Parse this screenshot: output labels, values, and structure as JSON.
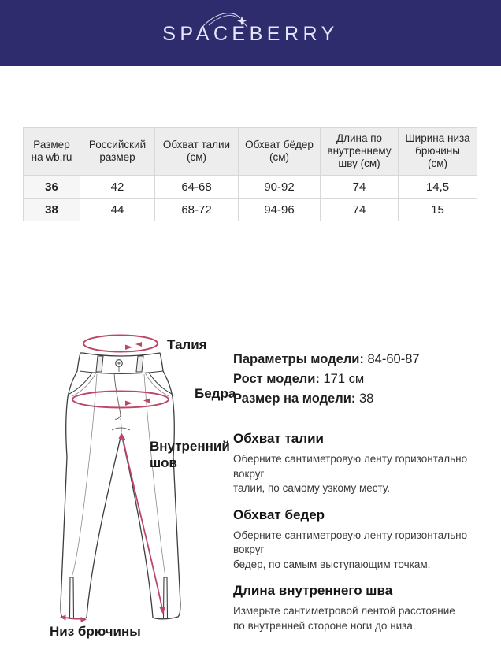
{
  "brand": {
    "logo_text": "SPACEBERRY"
  },
  "colors": {
    "header_bg": "#2e2c6d",
    "accent_pink": "#bc4767",
    "table_header_bg": "#ededed",
    "table_first_col_bg": "#f6f6f6"
  },
  "size_table": {
    "columns": [
      "Размер\nна wb.ru",
      "Российский\nразмер",
      "Обхват талии\n(см)",
      "Обхват бёдер\n(см)",
      "Длина по\nвнутреннему\nшву (см)",
      "Ширина низа\nбрючины\n(см)"
    ],
    "rows": [
      [
        "36",
        "42",
        "64-68",
        "90-92",
        "74",
        "14,5"
      ],
      [
        "38",
        "44",
        "68-72",
        "94-96",
        "74",
        "15"
      ]
    ]
  },
  "diagram": {
    "labels": {
      "waist": "Талия",
      "hips": "Бедра",
      "inseam": "Внутренний шов",
      "hem": "Низ брючины"
    },
    "icons": [
      "waist-measure-ellipse",
      "hips-measure-ellipse",
      "inseam-arrow",
      "hem-width-arrow"
    ]
  },
  "model_info": [
    {
      "label": "Параметры модели:",
      "value": "84-60-87"
    },
    {
      "label": "Рост модели:",
      "value": "171 см"
    },
    {
      "label": "Размер на модели:",
      "value": "38"
    }
  ],
  "instructions": [
    {
      "title": "Обхват талии",
      "text": "Оберните сантиметровую ленту горизонтально вокруг\nталии, по самому узкому месту."
    },
    {
      "title": "Обхват бедер",
      "text": "Оберните сантиметровую ленту горизонтально вокруг\nбедер, по самым выступающим точкам."
    },
    {
      "title": "Длина внутреннего шва",
      "text": "Измерьте сантиметровой лентой расстояние\nпо внутренней стороне ноги до низа."
    }
  ]
}
